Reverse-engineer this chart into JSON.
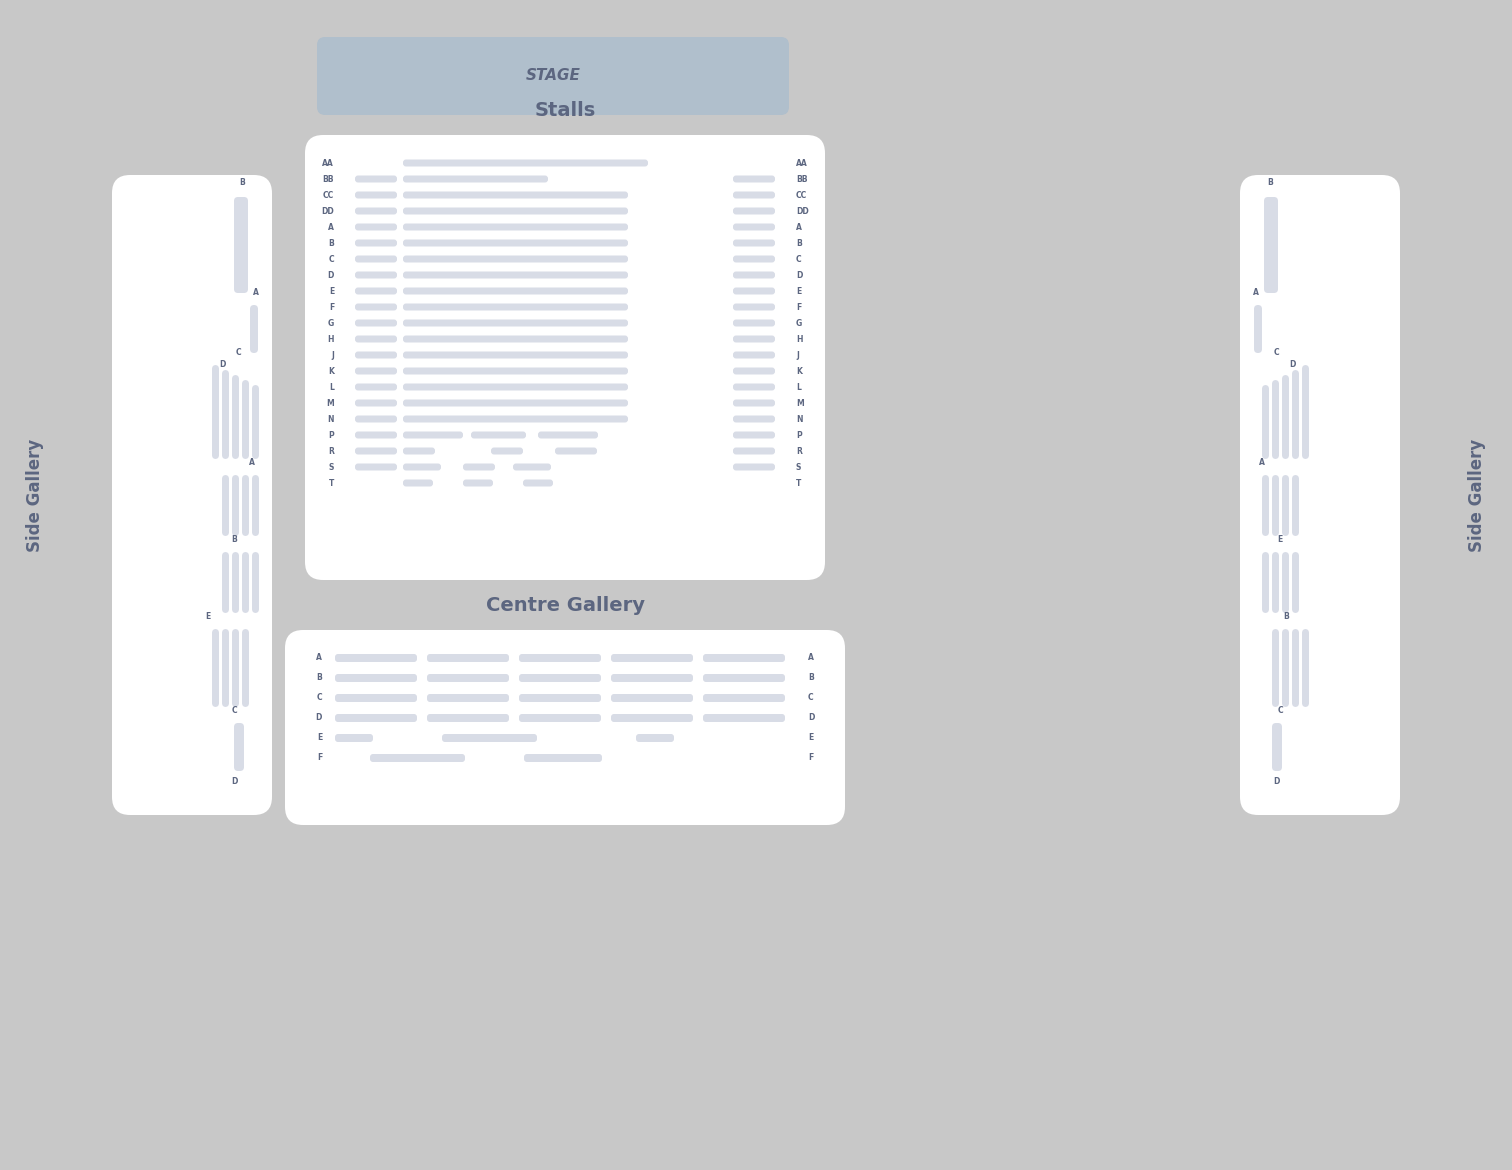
{
  "bg_color": "#c8c8c8",
  "panel_color": "#f5f5f5",
  "seat_color": "#d8dce6",
  "stage_color": "#b0bfcc",
  "text_color": "#5c6680",
  "stage_label": "STAGE",
  "stalls_label": "Stalls",
  "centre_gallery_label": "Centre Gallery",
  "side_gallery_label": "Side Gallery",
  "stalls_rows": [
    "AA",
    "BB",
    "CC",
    "DD",
    "A",
    "B",
    "C",
    "D",
    "E",
    "F",
    "G",
    "H",
    "J",
    "K",
    "L",
    "M",
    "N",
    "P",
    "R",
    "S",
    "T"
  ],
  "centre_gallery_rows": [
    "A",
    "B",
    "C",
    "D",
    "E",
    "F"
  ]
}
